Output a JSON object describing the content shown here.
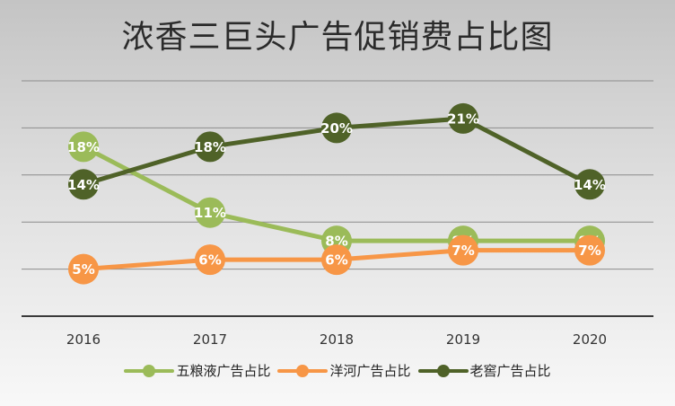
{
  "chart_data": {
    "type": "line",
    "title": "浓香三巨头广告促销费占比图",
    "categories": [
      "2016",
      "2017",
      "2018",
      "2019",
      "2020"
    ],
    "ylim": [
      0,
      25
    ],
    "grid": true,
    "legend_position": "bottom",
    "series": [
      {
        "name": "五粮液广告占比",
        "color": "#9bbb59",
        "values": [
          18,
          11,
          8,
          8,
          8
        ],
        "labels": [
          "18%",
          "11%",
          "8%",
          "8%",
          "8%"
        ]
      },
      {
        "name": "洋河广告占比",
        "color": "#f79646",
        "values": [
          5,
          6,
          6,
          7,
          7
        ],
        "labels": [
          "5%",
          "6%",
          "6%",
          "7%",
          "7%"
        ]
      },
      {
        "name": "老窖广告占比",
        "color": "#4f6228",
        "values": [
          14,
          18,
          20,
          21,
          14
        ],
        "labels": [
          "14%",
          "18%",
          "20%",
          "21%",
          "14%"
        ]
      }
    ]
  }
}
